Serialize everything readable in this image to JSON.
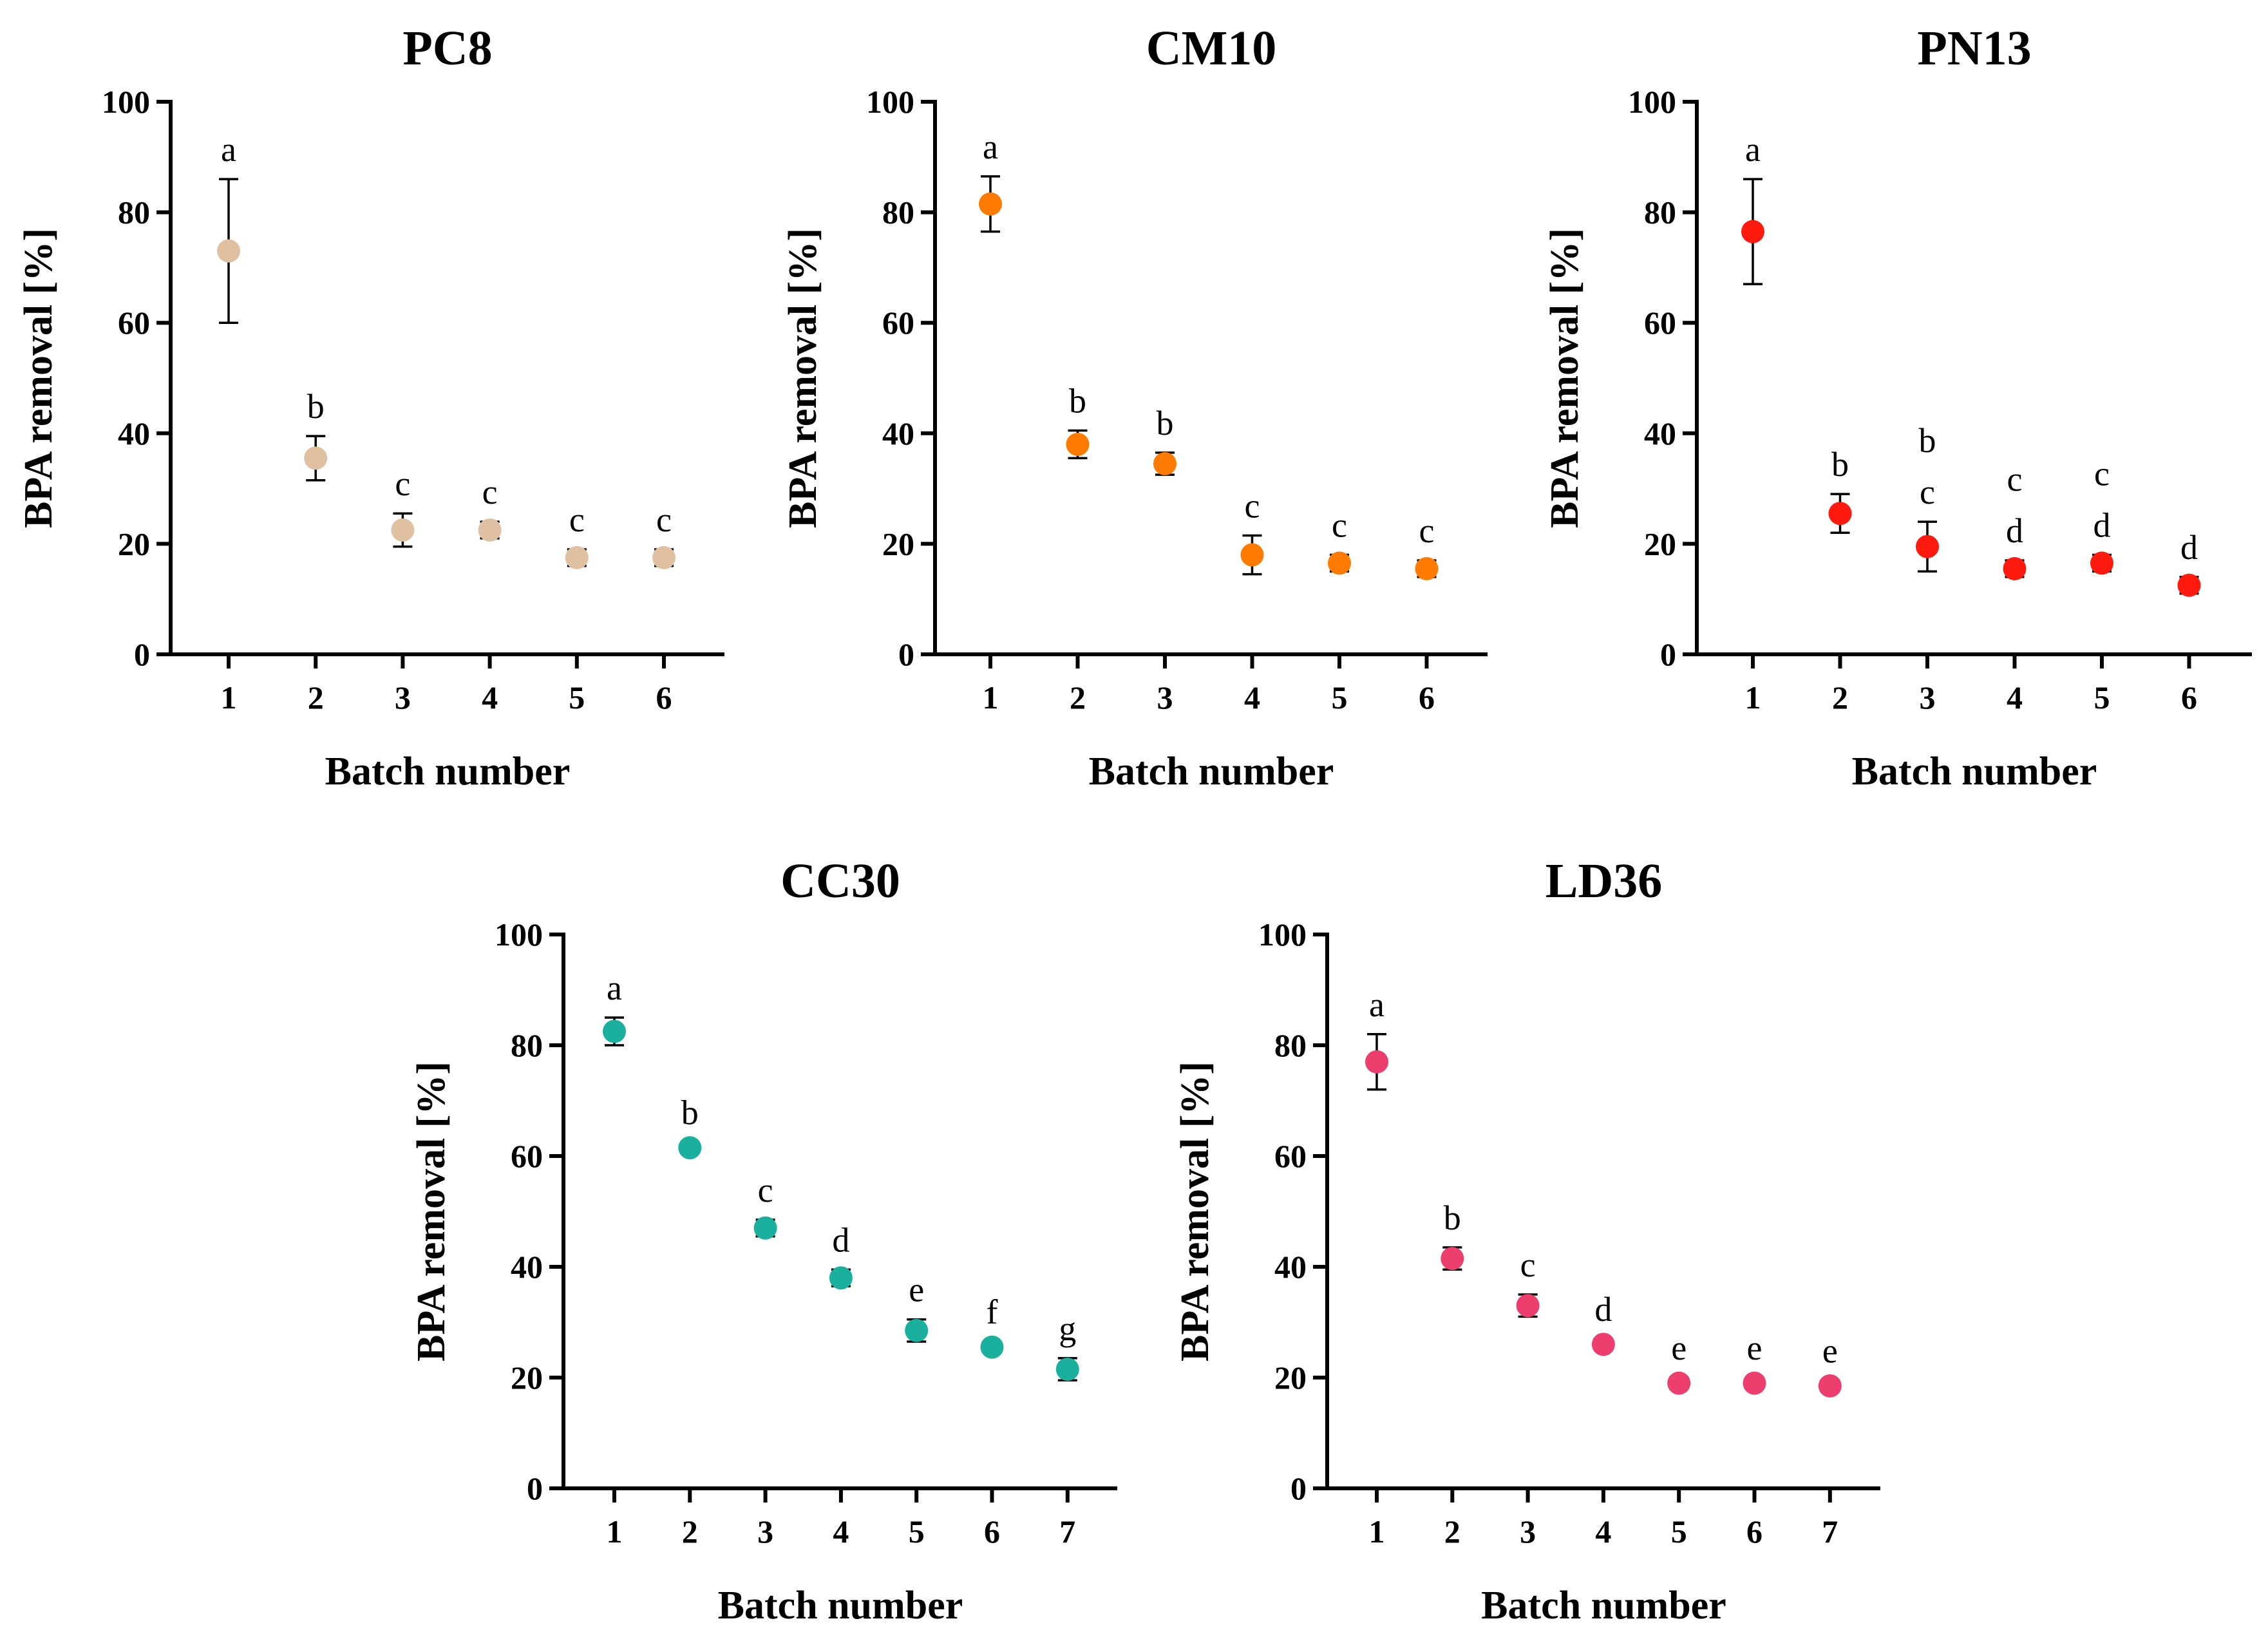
{
  "chart_data": [
    {
      "type": "scatter",
      "title": "PC8",
      "xlabel": "Batch number",
      "ylabel": "BPA removal [%]",
      "ylim": [
        0,
        100
      ],
      "yticks": [
        "0",
        "20",
        "40",
        "60",
        "80",
        "100"
      ],
      "x": [
        "1",
        "2",
        "3",
        "4",
        "5",
        "6"
      ],
      "values": [
        73,
        35.5,
        22.5,
        22.5,
        17.5,
        17.5
      ],
      "errors": [
        13,
        4,
        3,
        1.5,
        1.5,
        1.5
      ],
      "letters": [
        "a",
        "b",
        "c",
        "c",
        "c",
        "c"
      ],
      "color": "#dfc0a0"
    },
    {
      "type": "scatter",
      "title": "CM10",
      "xlabel": "Batch number",
      "ylabel": "BPA removal [%]",
      "ylim": [
        0,
        100
      ],
      "yticks": [
        "0",
        "20",
        "40",
        "60",
        "80",
        "100"
      ],
      "x": [
        "1",
        "2",
        "3",
        "4",
        "5",
        "6"
      ],
      "values": [
        81.5,
        38,
        34.5,
        18,
        16.5,
        15.5
      ],
      "errors": [
        5,
        2.5,
        2,
        3.5,
        1.5,
        1.5
      ],
      "letters": [
        "a",
        "b",
        "b",
        "c",
        "c",
        "c"
      ],
      "color": "#ff7b00"
    },
    {
      "type": "scatter",
      "title": "PN13",
      "xlabel": "Batch number",
      "ylabel": "BPA removal [%]",
      "ylim": [
        0,
        100
      ],
      "yticks": [
        "0",
        "20",
        "40",
        "60",
        "80",
        "100"
      ],
      "x": [
        "1",
        "2",
        "3",
        "4",
        "5",
        "6"
      ],
      "values": [
        76.5,
        25.5,
        19.5,
        15.5,
        16.5,
        12.5
      ],
      "errors": [
        9.5,
        3.5,
        4.5,
        1.5,
        1.5,
        1.5
      ],
      "letters": [
        [
          "a"
        ],
        [
          "b"
        ],
        [
          "b",
          "c"
        ],
        [
          "c",
          "d"
        ],
        [
          "c",
          "d"
        ],
        [
          "d"
        ]
      ],
      "color": "#fe1a0e"
    },
    {
      "type": "scatter",
      "title": "CC30",
      "xlabel": "Batch number",
      "ylabel": "BPA removal [%]",
      "ylim": [
        0,
        100
      ],
      "yticks": [
        "0",
        "20",
        "40",
        "60",
        "80",
        "100"
      ],
      "x": [
        "1",
        "2",
        "3",
        "4",
        "5",
        "6",
        "7"
      ],
      "values": [
        82.5,
        61.5,
        47,
        38,
        28.5,
        25.5,
        21.5
      ],
      "errors": [
        2.5,
        1,
        1.5,
        1.5,
        2,
        1,
        2
      ],
      "letters": [
        "a",
        "b",
        "c",
        "d",
        "e",
        "f",
        "g"
      ],
      "color": "#1ab09d"
    },
    {
      "type": "scatter",
      "title": "LD36",
      "xlabel": "Batch number",
      "ylabel": "BPA removal [%]",
      "ylim": [
        0,
        100
      ],
      "yticks": [
        "0",
        "20",
        "40",
        "60",
        "80",
        "100"
      ],
      "x": [
        "1",
        "2",
        "3",
        "4",
        "5",
        "6",
        "7"
      ],
      "values": [
        77,
        41.5,
        33,
        26,
        19,
        19,
        18.5
      ],
      "errors": [
        5,
        2,
        2,
        1,
        1,
        1,
        1
      ],
      "letters": [
        "a",
        "b",
        "c",
        "d",
        "e",
        "e",
        "e"
      ],
      "color": "#ed3f6e"
    }
  ]
}
